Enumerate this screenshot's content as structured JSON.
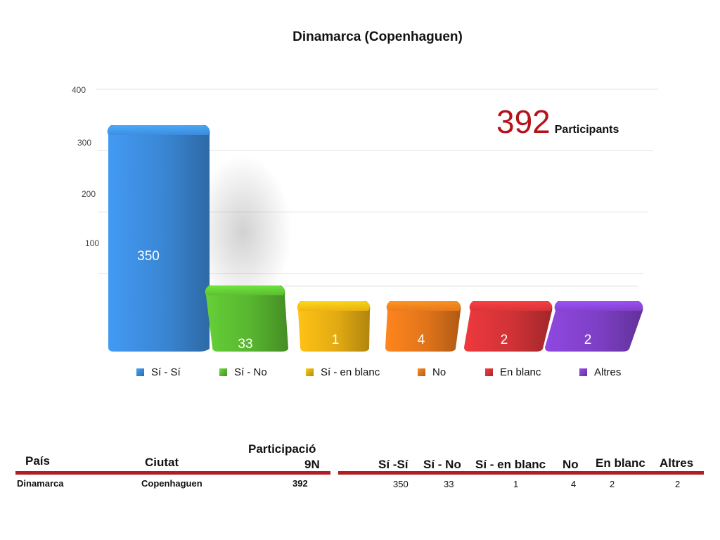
{
  "chart_data": {
    "type": "bar",
    "title": "Dinamarca (Copenhaguen)",
    "categories": [
      "Sí - Sí",
      "Sí - No",
      "Sí - en blanc",
      "No",
      "En blanc",
      "Altres"
    ],
    "values": [
      350,
      33,
      1,
      4,
      2,
      2
    ],
    "value_labels": [
      "350",
      "33",
      "1",
      "4",
      "2",
      "2"
    ],
    "colors": [
      "#3a86d4",
      "#58b530",
      "#e2aa12",
      "#e0741a",
      "#cf3236",
      "#7d3fc4"
    ],
    "yticks": [
      "100",
      "200",
      "300",
      "400"
    ],
    "ylim": [
      0,
      400
    ],
    "grid": true,
    "legend": "bottom"
  },
  "participants": {
    "value": "392",
    "label": "Participants"
  },
  "table": {
    "left_headers": [
      "País",
      "Ciutat",
      "Participació",
      "9N"
    ],
    "left_row": [
      "Dinamarca",
      "Copenhaguen",
      "392"
    ],
    "right_headers": [
      "Sí -Sí",
      "Sí - No",
      "Sí - en blanc",
      "No",
      "En blanc",
      "Altres"
    ],
    "right_row": [
      "350",
      "33",
      "1",
      "4",
      "2",
      "2"
    ]
  }
}
